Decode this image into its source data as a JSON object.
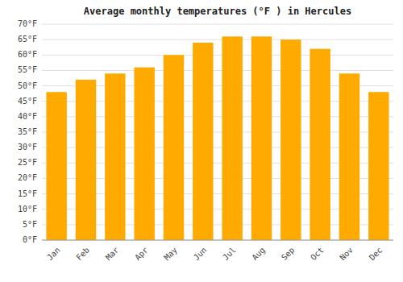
{
  "chart_data": {
    "type": "bar",
    "title": "Average monthly temperatures (°F ) in Hercules",
    "categories": [
      "Jan",
      "Feb",
      "Mar",
      "Apr",
      "May",
      "Jun",
      "Jul",
      "Aug",
      "Sep",
      "Oct",
      "Nov",
      "Dec"
    ],
    "values": [
      48,
      52,
      54,
      56,
      60,
      64,
      66,
      66,
      65,
      62,
      54,
      48
    ],
    "color": "#FFAA00",
    "ylim": [
      0,
      70
    ],
    "yticks": [
      {
        "value": 0,
        "label": "0°F"
      },
      {
        "value": 5,
        "label": "5°F"
      },
      {
        "value": 10,
        "label": "10°F"
      },
      {
        "value": 15,
        "label": "15°F"
      },
      {
        "value": 20,
        "label": "20°F"
      },
      {
        "value": 25,
        "label": "25°F"
      },
      {
        "value": 30,
        "label": "30°F"
      },
      {
        "value": 35,
        "label": "35°F"
      },
      {
        "value": 40,
        "label": "40°F"
      },
      {
        "value": 45,
        "label": "45°F"
      },
      {
        "value": 50,
        "label": "50°F"
      },
      {
        "value": 55,
        "label": "55°F"
      },
      {
        "value": 60,
        "label": "60°F"
      },
      {
        "value": 65,
        "label": "65°F"
      },
      {
        "value": 70,
        "label": "70°F"
      }
    ],
    "grid": true
  }
}
